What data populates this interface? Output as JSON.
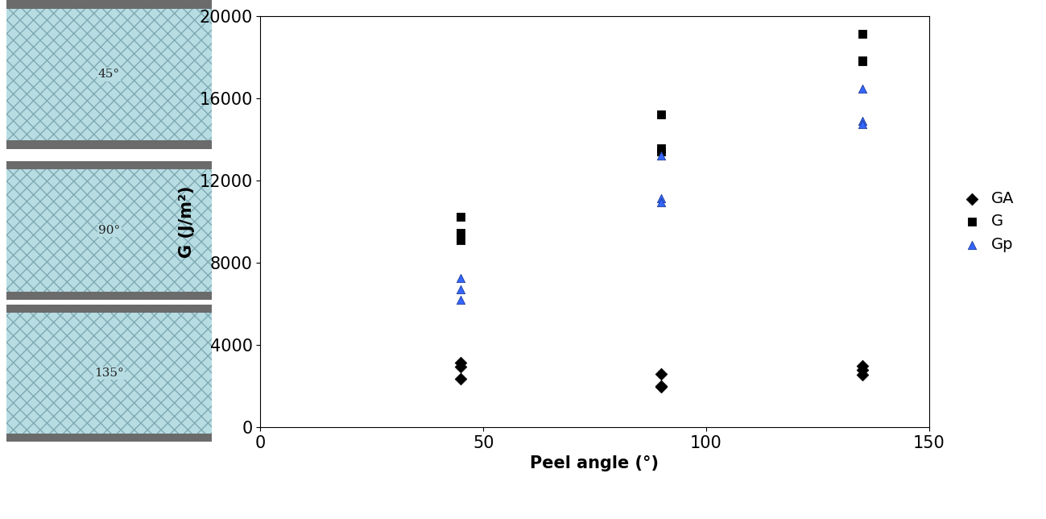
{
  "chart_data": {
    "type": "scatter",
    "x_label": "Peel angle (°)",
    "y_label": "G (J/m²)",
    "xlim": [
      0,
      150
    ],
    "xticks": [
      0,
      50,
      100,
      150
    ],
    "ylim": [
      0,
      20000
    ],
    "yticks": [
      0,
      4000,
      8000,
      12000,
      16000,
      20000
    ],
    "grid": false,
    "legend": "right",
    "series": [
      {
        "name": "GA",
        "color": "#000000",
        "marker": "diamond",
        "x": [
          45,
          45,
          45,
          90,
          90,
          90,
          135,
          135,
          135
        ],
        "values": [
          3150,
          2950,
          2350,
          2600,
          2000,
          1950,
          3000,
          2800,
          2550
        ]
      },
      {
        "name": "G",
        "color": "#000000",
        "marker": "square",
        "x": [
          45,
          45,
          45,
          90,
          90,
          90,
          135,
          135,
          135
        ],
        "values": [
          10250,
          9450,
          9100,
          15200,
          13550,
          13400,
          19150,
          17850,
          17800
        ]
      },
      {
        "name": "Gp",
        "color": "#3366ff",
        "marker": "triangle",
        "x": [
          45,
          45,
          45,
          90,
          90,
          90,
          135,
          135,
          135
        ],
        "values": [
          7250,
          6700,
          6200,
          13200,
          11150,
          10950,
          16450,
          14900,
          14750
        ]
      }
    ]
  },
  "panels": [
    "45°",
    "90°",
    "135°"
  ]
}
